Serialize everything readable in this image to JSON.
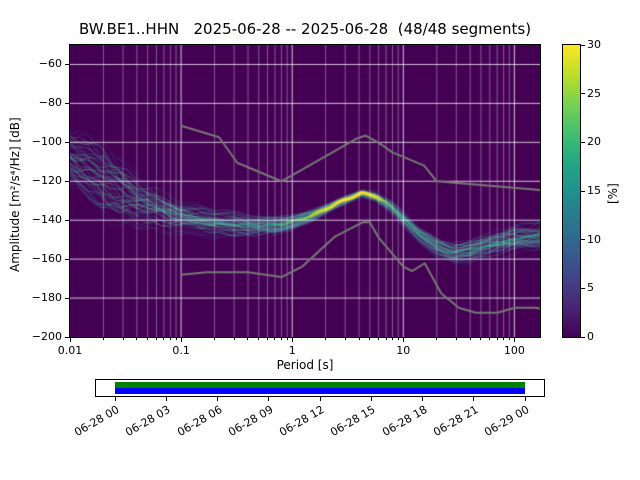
{
  "chart_data": {
    "type": "heatmap",
    "subtype": "seismic-ppsd",
    "title": "BW.BE1..HHN   2025-06-28 -- 2025-06-28  (48/48 segments)",
    "station_id": "BW.BE1..HHN",
    "start_date": "2025-06-28",
    "end_date": "2025-06-28",
    "segments_used": 48,
    "segments_total": 48,
    "xlabel": "Period [s]",
    "ylabel": "Amplitude [m²/s⁴/Hz] [dB]",
    "xscale": "log",
    "xlim": [
      0.01,
      170
    ],
    "ylim": [
      -200,
      -50
    ],
    "xticks": [
      0.01,
      0.1,
      1,
      10,
      100
    ],
    "xtick_labels": [
      "0.01",
      "0.1",
      "1",
      "10",
      "100"
    ],
    "yticks": [
      -60,
      -80,
      -100,
      -120,
      -140,
      -160,
      -180,
      -200
    ],
    "ytick_labels": [
      "−60",
      "−80",
      "−100",
      "−120",
      "−140",
      "−160",
      "−180",
      "−200"
    ],
    "grid": true,
    "background_color": "#440154",
    "colormap": "viridis",
    "noise_model_color": "#777777",
    "colorbar": {
      "label": "[%]",
      "min": 0,
      "max": 30,
      "ticks": [
        0,
        5,
        10,
        15,
        20,
        25,
        30
      ]
    },
    "psd_mode": [
      [
        0.01,
        -106
      ],
      [
        0.02,
        -118
      ],
      [
        0.04,
        -130
      ],
      [
        0.1,
        -138
      ],
      [
        0.2,
        -141
      ],
      [
        0.4,
        -142.5
      ],
      [
        0.7,
        -142.5
      ],
      [
        1.0,
        -141
      ],
      [
        1.6,
        -137
      ],
      [
        2.5,
        -131.5
      ],
      [
        4.2,
        -126
      ],
      [
        5.6,
        -127.5
      ],
      [
        7.9,
        -133
      ],
      [
        10,
        -139
      ],
      [
        14,
        -147
      ],
      [
        20,
        -153.5
      ],
      [
        28,
        -157
      ],
      [
        40,
        -156
      ],
      [
        63,
        -152.5
      ],
      [
        100,
        -149.5
      ],
      [
        170,
        -147.5
      ]
    ],
    "psd_spread": [
      [
        0.01,
        16
      ],
      [
        0.02,
        22
      ],
      [
        0.045,
        14
      ],
      [
        0.1,
        9
      ],
      [
        0.2,
        8
      ],
      [
        0.4,
        7
      ],
      [
        1.0,
        5
      ],
      [
        2.0,
        3
      ],
      [
        4.2,
        2.2
      ],
      [
        8.0,
        4
      ],
      [
        14,
        5
      ],
      [
        25,
        6
      ],
      [
        50,
        7
      ],
      [
        100,
        8
      ],
      [
        170,
        9
      ]
    ],
    "psd_intensity": [
      [
        0.01,
        0.15
      ],
      [
        0.03,
        0.22
      ],
      [
        0.1,
        0.45
      ],
      [
        0.3,
        0.52
      ],
      [
        0.6,
        0.58
      ],
      [
        1.2,
        0.78
      ],
      [
        2.0,
        0.95
      ],
      [
        3.0,
        1.0
      ],
      [
        5.5,
        0.98
      ],
      [
        6.5,
        0.85
      ],
      [
        8.0,
        0.7
      ],
      [
        10,
        0.6
      ],
      [
        15,
        0.52
      ],
      [
        25,
        0.5
      ],
      [
        40,
        0.55
      ],
      [
        70,
        0.6
      ],
      [
        120,
        0.58
      ],
      [
        170,
        0.55
      ]
    ],
    "noise_models": {
      "high": [
        [
          0.1,
          -91.5
        ],
        [
          0.22,
          -97.4
        ],
        [
          0.32,
          -110.5
        ],
        [
          0.8,
          -120.0
        ],
        [
          3.8,
          -98.1
        ],
        [
          4.6,
          -96.5
        ],
        [
          6.3,
          -101.0
        ],
        [
          7.9,
          -105.0
        ],
        [
          15.4,
          -112.0
        ],
        [
          20.0,
          -120.0
        ],
        [
          170.0,
          -124.5
        ]
      ],
      "low": [
        [
          0.1,
          -168.0
        ],
        [
          0.17,
          -166.7
        ],
        [
          0.4,
          -166.7
        ],
        [
          0.8,
          -169.2
        ],
        [
          1.24,
          -163.7
        ],
        [
          2.4,
          -148.6
        ],
        [
          4.3,
          -141.1
        ],
        [
          5.0,
          -141.1
        ],
        [
          6.0,
          -149.0
        ],
        [
          10.0,
          -163.8
        ],
        [
          12.0,
          -166.2
        ],
        [
          15.6,
          -162.1
        ],
        [
          21.9,
          -177.5
        ],
        [
          31.6,
          -185.0
        ],
        [
          45.0,
          -187.5
        ],
        [
          70.0,
          -187.5
        ],
        [
          101.0,
          -185.0
        ],
        [
          154.0,
          -185.0
        ],
        [
          170.0,
          -185.4
        ]
      ]
    },
    "timeline": {
      "tick_labels": [
        "06-28 00",
        "06-28 03",
        "06-28 06",
        "06-28 09",
        "06-28 12",
        "06-28 15",
        "06-28 18",
        "06-28 21",
        "06-29 00"
      ],
      "coverage_color": "#008000",
      "extent_color": "#0000ff",
      "coverage_fraction": 1.0
    }
  }
}
